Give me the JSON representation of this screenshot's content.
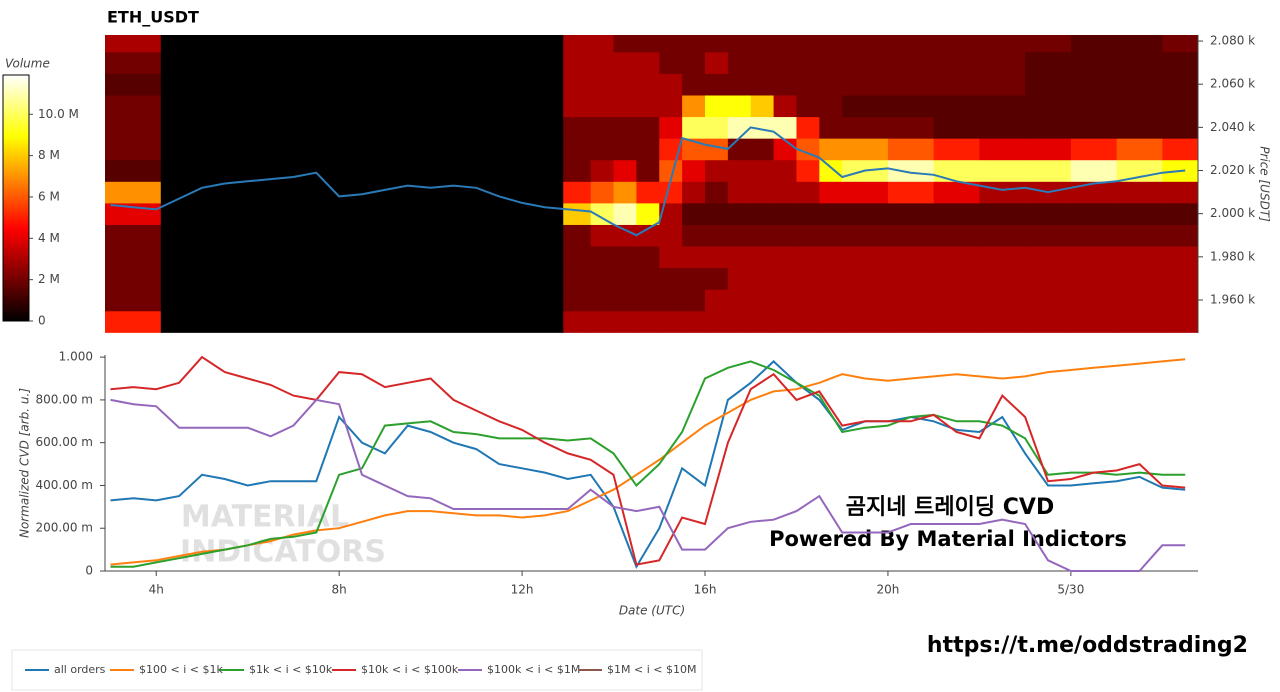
{
  "chart_data": [
    {
      "type": "heatmap",
      "title": "ETH_USDT",
      "colormap": "hot",
      "colorbar_label": "Volume",
      "zlim": [
        0,
        11.9
      ],
      "zticks": [
        {
          "value": 0,
          "label": "0"
        },
        {
          "value": 2,
          "label": "2 M"
        },
        {
          "value": 4,
          "label": "4 M"
        },
        {
          "value": 6,
          "label": "6 M"
        },
        {
          "value": 8,
          "label": "8 M"
        },
        {
          "value": 10,
          "label": "10.0 M"
        }
      ],
      "ylabel": "Price [USDT]",
      "ylim": [
        1944.7,
        2082.8
      ],
      "yticks": [
        {
          "value": 1960,
          "label": "1.960 k"
        },
        {
          "value": 1980,
          "label": "1.980 k"
        },
        {
          "value": 2000,
          "label": "2.000 k"
        },
        {
          "value": 2020,
          "label": "2.020 k"
        },
        {
          "value": 2040,
          "label": "2.040 k"
        },
        {
          "value": 2060,
          "label": "2.060 k"
        },
        {
          "value": 2080,
          "label": "2.080 k"
        }
      ],
      "xlim": [
        2.88,
        26.78
      ],
      "x_bins": [
        2.88,
        4.1,
        12.9,
        13.5,
        14,
        14.5,
        15,
        15.5,
        16,
        16.5,
        17,
        17.5,
        18,
        18.5,
        19,
        20,
        21,
        22,
        23,
        24,
        25,
        26,
        26.78
      ],
      "y_bins": [
        1945,
        1955,
        1965,
        1975,
        1985,
        1995,
        2005,
        2015,
        2025,
        2035,
        2045,
        2055,
        2065,
        2075,
        2085
      ],
      "z": [
        [
          5,
          0,
          3,
          3,
          3,
          3,
          3,
          3,
          3,
          3,
          3,
          3,
          3,
          3,
          3,
          3,
          3,
          3,
          3,
          3,
          3,
          3
        ],
        [
          2,
          0,
          2,
          2,
          2,
          2,
          2,
          2,
          3,
          3,
          3,
          3,
          3,
          3,
          3,
          3,
          3,
          3,
          3,
          3,
          3,
          3
        ],
        [
          2,
          0,
          2,
          2,
          2,
          2,
          2,
          2,
          2,
          3,
          3,
          3,
          3,
          3,
          3,
          3,
          3,
          3,
          3,
          3,
          3,
          3
        ],
        [
          2,
          0,
          2,
          2,
          2,
          2,
          3,
          3,
          3,
          3,
          3,
          3,
          3,
          3,
          3,
          3,
          3,
          3,
          3,
          3,
          3,
          3
        ],
        [
          2,
          0,
          2,
          3,
          3,
          3,
          3,
          2,
          2,
          2,
          2,
          2,
          2,
          2,
          2,
          2,
          2,
          2,
          2,
          2,
          2,
          2
        ],
        [
          4,
          0,
          8,
          10,
          11,
          9,
          3,
          1.5,
          1.5,
          1.5,
          1.5,
          1.5,
          1.5,
          1.5,
          1.5,
          1.5,
          1.5,
          1.5,
          1.5,
          1.5,
          1.5,
          1.5
        ],
        [
          7,
          0,
          5,
          6,
          7,
          5,
          5,
          3,
          2,
          3,
          3,
          3,
          3,
          4,
          4,
          5,
          4,
          3,
          3,
          3,
          3,
          3
        ],
        [
          1.5,
          0,
          2,
          3,
          4,
          2,
          6,
          4,
          3,
          3,
          3,
          3,
          5,
          9,
          10,
          11,
          10,
          10,
          10,
          11,
          10,
          9
        ],
        [
          2,
          0,
          2,
          2,
          2,
          2,
          5,
          6,
          6,
          2,
          2,
          4,
          6,
          7,
          7,
          6,
          5,
          4,
          4,
          5,
          6,
          5
        ],
        [
          2,
          0,
          2,
          2,
          2,
          2,
          4,
          10,
          10,
          11,
          11,
          11,
          5,
          2,
          2,
          2,
          1.5,
          1.5,
          1.5,
          1.5,
          1.5,
          1.5
        ],
        [
          2,
          0,
          3,
          3,
          3,
          3,
          3,
          7,
          9,
          9,
          8,
          3,
          2,
          2,
          1.5,
          1.5,
          1.5,
          1.5,
          1.5,
          1.5,
          1.5,
          1.5
        ],
        [
          1.5,
          0,
          3,
          3,
          3,
          3,
          3,
          2,
          2,
          2,
          2,
          2,
          2,
          2,
          2,
          2,
          2,
          2,
          1.5,
          1.5,
          1.5,
          1.5
        ],
        [
          2,
          0,
          3,
          3,
          3,
          3,
          2,
          2,
          3,
          2,
          2,
          2,
          2,
          2,
          2,
          2,
          2,
          2,
          1.5,
          1.5,
          1.5,
          1.5
        ],
        [
          3,
          0,
          3,
          3,
          2,
          2,
          2,
          2,
          2,
          2,
          2,
          2,
          2,
          2,
          2,
          2,
          2,
          2,
          2,
          1.5,
          1.5,
          2
        ]
      ],
      "overlay": {
        "color": "#2a7ab8",
        "x": [
          3,
          3.5,
          4,
          4.5,
          5,
          5.5,
          6,
          6.5,
          7,
          7.5,
          8,
          8.5,
          9,
          9.5,
          10,
          10.5,
          11,
          11.5,
          12,
          12.5,
          13,
          13.5,
          14,
          14.5,
          15,
          15.5,
          16,
          16.5,
          17,
          17.5,
          18,
          18.5,
          19,
          19.5,
          20,
          20.5,
          21,
          21.5,
          22,
          22.5,
          23,
          23.5,
          24,
          24.5,
          25,
          25.5,
          26,
          26.5
        ],
        "values": [
          2004,
          2003,
          2002,
          2007,
          2012,
          2014,
          2015,
          2016,
          2017,
          2019,
          2008,
          2009,
          2011,
          2013,
          2012,
          2013,
          2012,
          2008,
          2005,
          2003,
          2002,
          2001,
          1995,
          1990,
          1996,
          2035,
          2032,
          2030,
          2040,
          2038,
          2030,
          2026,
          2017,
          2020,
          2021,
          2019,
          2018,
          2015,
          2013,
          2011,
          2012,
          2010,
          2012,
          2014,
          2015,
          2017,
          2019,
          2020
        ]
      }
    },
    {
      "type": "line",
      "xlabel": "Date (UTC)",
      "ylabel": "Normalized CVD [arb. u.]",
      "xlim": [
        2.88,
        26.78
      ],
      "xticks": [
        {
          "value": 4,
          "label": "4h"
        },
        {
          "value": 8,
          "label": "8h"
        },
        {
          "value": 12,
          "label": "12h"
        },
        {
          "value": 16,
          "label": "16h"
        },
        {
          "value": 20,
          "label": "20h"
        },
        {
          "value": 24,
          "label": "5/30"
        }
      ],
      "ylim": [
        0,
        1.01
      ],
      "yticks": [
        {
          "value": 0,
          "label": "0"
        },
        {
          "value": 0.2,
          "label": "200.00 m"
        },
        {
          "value": 0.4,
          "label": "400.00 m"
        },
        {
          "value": 0.6,
          "label": "600.00 m"
        },
        {
          "value": 0.8,
          "label": "800.00 m"
        },
        {
          "value": 1,
          "label": "1.000"
        }
      ],
      "legend": "bottom",
      "x": [
        3,
        3.5,
        4,
        4.5,
        5,
        5.5,
        6,
        6.5,
        7,
        7.5,
        8,
        8.5,
        9,
        9.5,
        10,
        10.5,
        11,
        11.5,
        12,
        12.5,
        13,
        13.5,
        14,
        14.5,
        15,
        15.5,
        16,
        16.5,
        17,
        17.5,
        18,
        18.5,
        19,
        19.5,
        20,
        20.5,
        21,
        21.5,
        22,
        22.5,
        23,
        23.5,
        24,
        24.5,
        25,
        25.5,
        26,
        26.5
      ],
      "series": [
        {
          "name": "all orders",
          "color": "#1f77b4",
          "values": [
            0.33,
            0.34,
            0.33,
            0.35,
            0.45,
            0.43,
            0.4,
            0.42,
            0.42,
            0.42,
            0.72,
            0.6,
            0.55,
            0.68,
            0.65,
            0.6,
            0.57,
            0.5,
            0.48,
            0.46,
            0.43,
            0.45,
            0.3,
            0.02,
            0.2,
            0.48,
            0.4,
            0.8,
            0.88,
            0.98,
            0.88,
            0.8,
            0.66,
            0.7,
            0.7,
            0.72,
            0.7,
            0.66,
            0.65,
            0.72,
            0.55,
            0.4,
            0.4,
            0.41,
            0.42,
            0.44,
            0.39,
            0.38
          ]
        },
        {
          "name": "$100 < i < $1k",
          "color": "#ff7f0e",
          "values": [
            0.03,
            0.04,
            0.05,
            0.07,
            0.09,
            0.1,
            0.12,
            0.14,
            0.17,
            0.19,
            0.2,
            0.23,
            0.26,
            0.28,
            0.28,
            0.27,
            0.26,
            0.26,
            0.25,
            0.26,
            0.28,
            0.33,
            0.38,
            0.45,
            0.52,
            0.6,
            0.68,
            0.74,
            0.8,
            0.84,
            0.85,
            0.88,
            0.92,
            0.9,
            0.89,
            0.9,
            0.91,
            0.92,
            0.91,
            0.9,
            0.91,
            0.93,
            0.94,
            0.95,
            0.96,
            0.97,
            0.98,
            0.99
          ]
        },
        {
          "name": "$1k < i < $10k",
          "color": "#2ca02c",
          "values": [
            0.02,
            0.02,
            0.04,
            0.06,
            0.08,
            0.1,
            0.12,
            0.15,
            0.16,
            0.18,
            0.45,
            0.48,
            0.68,
            0.69,
            0.7,
            0.65,
            0.64,
            0.62,
            0.62,
            0.62,
            0.61,
            0.62,
            0.55,
            0.4,
            0.5,
            0.65,
            0.9,
            0.95,
            0.98,
            0.94,
            0.88,
            0.82,
            0.65,
            0.67,
            0.68,
            0.72,
            0.73,
            0.7,
            0.7,
            0.68,
            0.62,
            0.45,
            0.46,
            0.46,
            0.45,
            0.46,
            0.45,
            0.45
          ]
        },
        {
          "name": "$10k < i < $100k",
          "color": "#d62728",
          "values": [
            0.85,
            0.86,
            0.85,
            0.88,
            1.0,
            0.93,
            0.9,
            0.87,
            0.82,
            0.8,
            0.93,
            0.92,
            0.86,
            0.88,
            0.9,
            0.8,
            0.75,
            0.7,
            0.66,
            0.6,
            0.55,
            0.52,
            0.45,
            0.03,
            0.05,
            0.25,
            0.22,
            0.6,
            0.85,
            0.92,
            0.8,
            0.84,
            0.68,
            0.7,
            0.7,
            0.7,
            0.73,
            0.65,
            0.62,
            0.82,
            0.72,
            0.42,
            0.43,
            0.46,
            0.47,
            0.5,
            0.4,
            0.39
          ]
        },
        {
          "name": "$100k < i < $1M",
          "color": "#9467bd",
          "values": [
            0.8,
            0.78,
            0.77,
            0.67,
            0.67,
            0.67,
            0.67,
            0.63,
            0.68,
            0.8,
            0.78,
            0.45,
            0.4,
            0.35,
            0.34,
            0.29,
            0.29,
            0.29,
            0.29,
            0.29,
            0.29,
            0.38,
            0.3,
            0.28,
            0.3,
            0.1,
            0.1,
            0.2,
            0.23,
            0.24,
            0.28,
            0.35,
            0.18,
            0.18,
            0.18,
            0.22,
            0.22,
            0.22,
            0.22,
            0.24,
            0.22,
            0.05,
            0,
            0,
            0,
            0,
            0.12,
            0.12
          ]
        },
        {
          "name": "$1M < i < $10M",
          "color": "#8c564b",
          "values": [
            null,
            null,
            null,
            null,
            null,
            null,
            null,
            null,
            null,
            null,
            null,
            null,
            null,
            null,
            null,
            null,
            null,
            null,
            null,
            null,
            null,
            null,
            null,
            null,
            null,
            null,
            null,
            null,
            null,
            null,
            null,
            null,
            null,
            null,
            null,
            null,
            null,
            null,
            null,
            null,
            null,
            null,
            null,
            null,
            null,
            null,
            null,
            null
          ]
        }
      ],
      "watermark": [
        "MATERIAL",
        "INDICATORS"
      ],
      "annotations": [
        "곰지네 트레이딩 CVD",
        "Powered By Material Indictors"
      ]
    }
  ],
  "footer_link": "https://t.me/oddstrading2"
}
